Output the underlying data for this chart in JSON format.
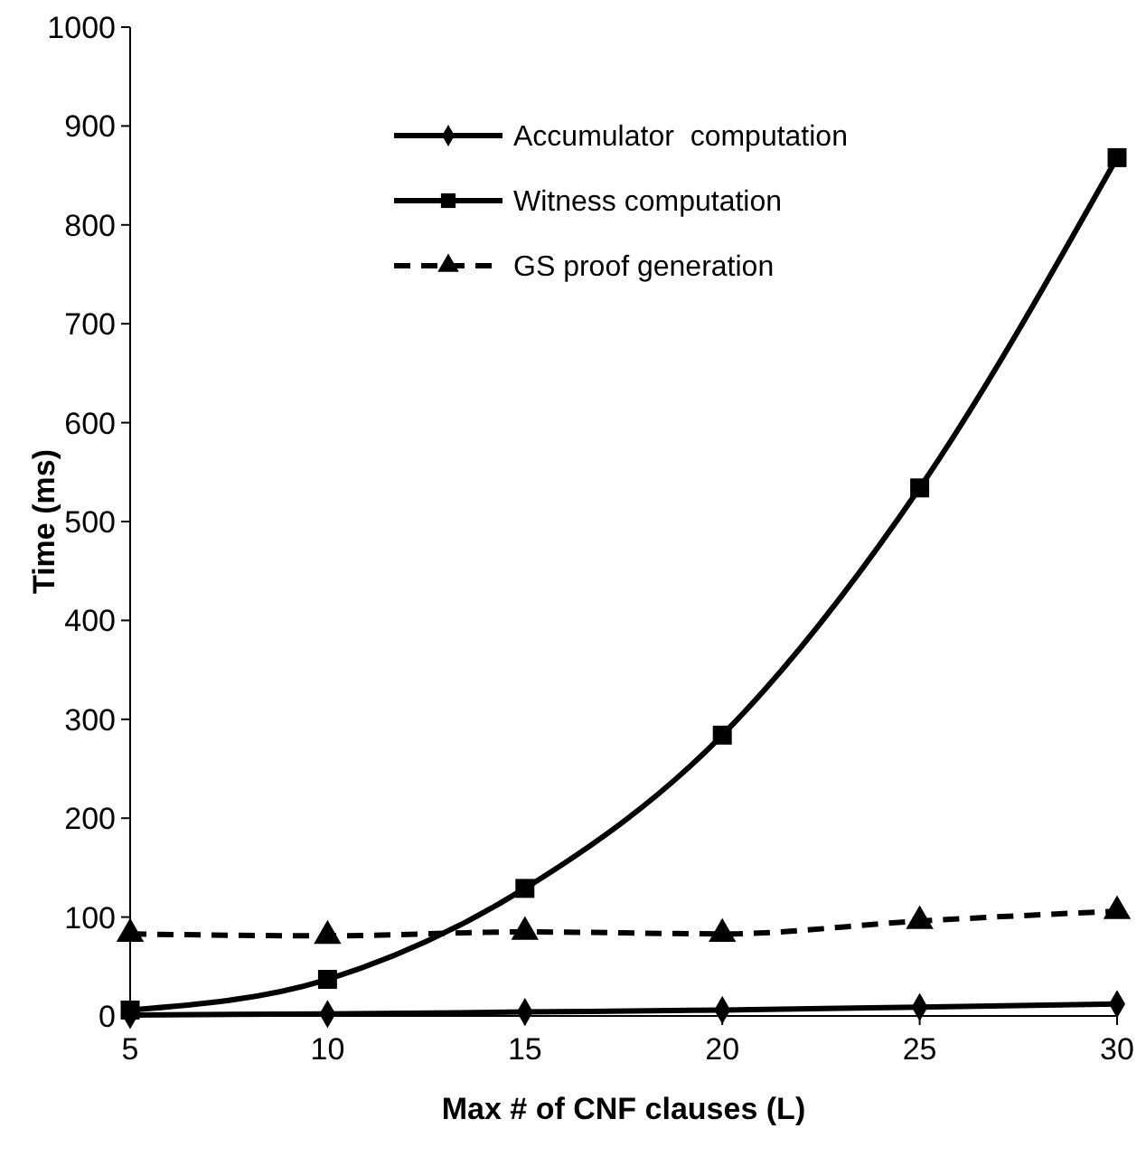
{
  "chart_data": {
    "type": "line",
    "xlabel": "Max # of CNF clauses (L)",
    "ylabel": "Time (ms)",
    "x": [
      5,
      10,
      15,
      20,
      25,
      30
    ],
    "xlim": [
      5,
      30
    ],
    "xticks": [
      5,
      10,
      15,
      20,
      25,
      30
    ],
    "ylim": [
      0,
      1000
    ],
    "yticks": [
      0,
      100,
      200,
      300,
      400,
      500,
      600,
      700,
      800,
      900,
      1000
    ],
    "grid": false,
    "legend": "top",
    "series": [
      {
        "name": "Accumulator  computation",
        "color": "#000000",
        "marker": "diamond",
        "line_style": "solid",
        "values": [
          1,
          2,
          4,
          6,
          9,
          12
        ]
      },
      {
        "name": "Witness computation",
        "color": "#000000",
        "marker": "square",
        "line_style": "solid",
        "values": [
          6,
          37,
          129,
          284,
          534,
          868
        ]
      },
      {
        "name": "GS proof generation",
        "color": "#000000",
        "marker": "triangle",
        "line_style": "dashed",
        "values": [
          83,
          81,
          85,
          83,
          96,
          106
        ]
      }
    ]
  }
}
